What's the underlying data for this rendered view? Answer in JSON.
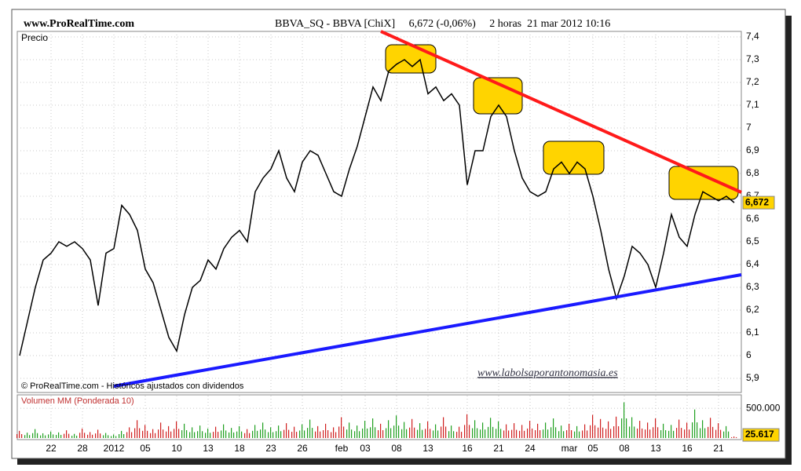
{
  "header": {
    "site": "www.ProRealTime.com",
    "title": "BBVA_SQ - BBVA [ChiX]     6,672 (-0,06%)     2 horas  21 mar 2012 10:16"
  },
  "chart_data": [
    {
      "type": "line",
      "axis_label": "Precio",
      "footer": "© ProRealTime.com - Históricos ajustados con dividendos",
      "watermark": "www.labolsaporantonomasia.es",
      "categories": [
        null,
        null,
        null,
        null,
        "22",
        null,
        null,
        null,
        "28",
        null,
        null,
        null,
        "2012",
        null,
        null,
        null,
        "05",
        null,
        null,
        null,
        "10",
        null,
        null,
        null,
        "13",
        null,
        null,
        null,
        "18",
        null,
        null,
        null,
        "23",
        null,
        null,
        null,
        "26",
        null,
        null,
        null,
        null,
        "feb",
        null,
        null,
        "03",
        null,
        null,
        null,
        "08",
        null,
        null,
        null,
        "13",
        null,
        null,
        null,
        null,
        "16",
        null,
        null,
        null,
        "21",
        null,
        null,
        null,
        "24",
        null,
        null,
        null,
        null,
        "mar",
        null,
        null,
        "05",
        null,
        null,
        null,
        "08",
        null,
        null,
        null,
        "13",
        null,
        null,
        null,
        "16",
        null,
        null,
        null,
        "21",
        null,
        null
      ],
      "series": [
        {
          "name": "BBVA",
          "color": "#000000",
          "values": [
            6.0,
            6.15,
            6.3,
            6.42,
            6.45,
            6.5,
            6.48,
            6.5,
            6.47,
            6.42,
            6.22,
            6.45,
            6.47,
            6.66,
            6.62,
            6.55,
            6.38,
            6.32,
            6.2,
            6.08,
            6.02,
            6.18,
            6.3,
            6.33,
            6.42,
            6.38,
            6.47,
            6.52,
            6.55,
            6.5,
            6.72,
            6.78,
            6.82,
            6.9,
            6.78,
            6.72,
            6.85,
            6.9,
            6.88,
            6.8,
            6.72,
            6.7,
            6.82,
            6.92,
            7.05,
            7.18,
            7.12,
            7.25,
            7.28,
            7.3,
            7.27,
            7.3,
            7.15,
            7.18,
            7.12,
            7.15,
            7.1,
            6.75,
            6.9,
            6.9,
            7.05,
            7.1,
            7.05,
            6.9,
            6.78,
            6.72,
            6.7,
            6.72,
            6.82,
            6.85,
            6.8,
            6.85,
            6.82,
            6.7,
            6.55,
            6.38,
            6.25,
            6.35,
            6.48,
            6.45,
            6.4,
            6.3,
            6.45,
            6.62,
            6.52,
            6.48,
            6.62,
            6.72,
            6.7,
            6.68,
            6.7,
            6.672
          ]
        }
      ],
      "last_value": {
        "value": 6.672,
        "label": "6,672"
      },
      "ylim": [
        5.9,
        7.4
      ],
      "yticks": [
        {
          "value": 5.9,
          "label": "5,9"
        },
        6,
        {
          "value": 6.1,
          "label": "6,1"
        },
        {
          "value": 6.2,
          "label": "6,2"
        },
        {
          "value": 6.3,
          "label": "6,3"
        },
        {
          "value": 6.4,
          "label": "6,4"
        },
        {
          "value": 6.5,
          "label": "6,5"
        },
        {
          "value": 6.6,
          "label": "6,6"
        },
        {
          "value": 6.7,
          "label": "6,7"
        },
        {
          "value": 6.8,
          "label": "6,8"
        },
        {
          "value": 6.9,
          "label": "6,9"
        },
        7,
        {
          "value": 7.1,
          "label": "7,1"
        },
        {
          "value": 7.2,
          "label": "7,2"
        },
        {
          "value": 7.3,
          "label": "7,3"
        },
        {
          "value": 7.4,
          "label": "7,4"
        }
      ],
      "grid": true
    },
    {
      "type": "bar",
      "axis_label": "Volumen MM (Ponderada 10)",
      "series": [
        {
          "name": "Volumen",
          "color": "#d02020",
          "up_color": "#20a020",
          "values": [
            120000,
            90000,
            150000,
            80000,
            110000,
            95000,
            130000,
            70000,
            160000,
            100000,
            140000,
            85000,
            60000,
            120000,
            180000,
            300000,
            220000,
            150000,
            260000,
            200000,
            280000,
            240000,
            180000,
            210000,
            160000,
            190000,
            230000,
            170000,
            200000,
            150000,
            220000,
            260000,
            180000,
            210000,
            250000,
            190000,
            230000,
            310000,
            200000,
            240000,
            180000,
            350000,
            260000,
            210000,
            290000,
            330000,
            240000,
            300000,
            380000,
            270000,
            320000,
            250000,
            280000,
            230000,
            350000,
            210000,
            190000,
            400000,
            300000,
            260000,
            340000,
            280000,
            230000,
            250000,
            220000,
            290000,
            240000,
            260000,
            330000,
            210000,
            240000,
            200000,
            230000,
            390000,
            320000,
            280000,
            360000,
            600000,
            350000,
            290000,
            260000,
            330000,
            240000,
            220000,
            310000,
            260000,
            480000,
            300000,
            340000,
            250000,
            200000,
            25617
          ]
        }
      ],
      "last_value": {
        "value": 25617,
        "label": "25.617"
      },
      "ylim": [
        0,
        700000
      ],
      "yticks": [
        {
          "value": 500000,
          "label": "500.000"
        }
      ]
    }
  ]
}
